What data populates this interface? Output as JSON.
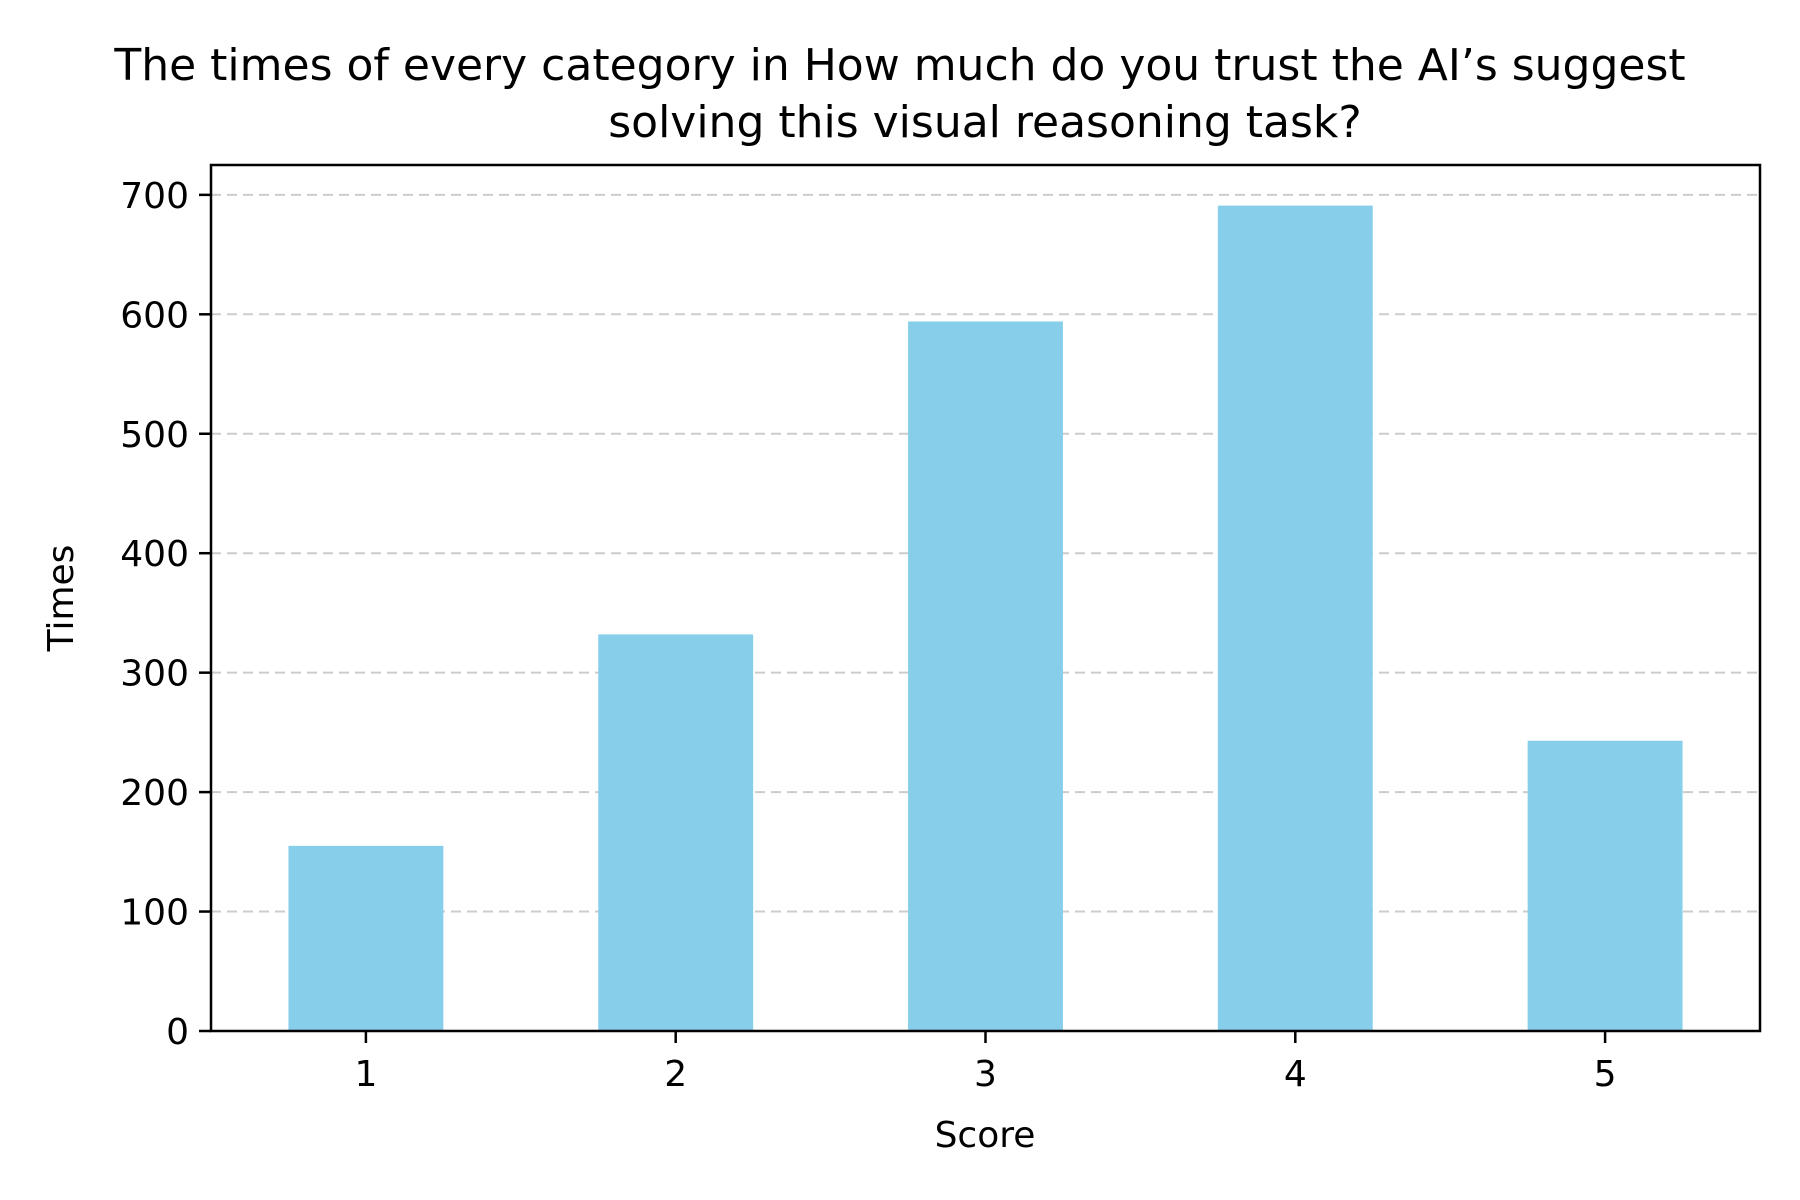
{
  "chart_data": {
    "type": "bar",
    "title_line1": "The times of every category in How much do you trust the AI’s suggest",
    "title_line2": "solving this visual reasoning task?",
    "xlabel": "Score",
    "ylabel": "Times",
    "categories": [
      "1",
      "2",
      "3",
      "4",
      "5"
    ],
    "values": [
      155,
      332,
      594,
      691,
      243
    ],
    "ylim": [
      0,
      725
    ],
    "yticks": [
      0,
      100,
      200,
      300,
      400,
      500,
      600,
      700
    ],
    "grid": "horizontal dashed",
    "bar_color": "#87CEEB"
  }
}
